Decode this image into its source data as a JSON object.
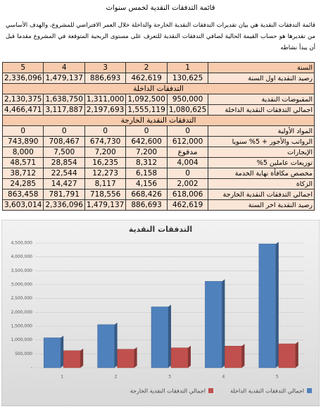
{
  "document": {
    "title": "قائمة التدفقات النقدية لخمس سنوات",
    "paragraph": "قائمة التدفقات النقدية هي بيان تقديرات التدفقات النقدية الخارجة والداخلة خلال العمر الافتراضي للمشروع، والهدف الأساسي من تقديرها هو حساب القيمة الحالية لصافي التدفقات النقدية للتعرف على مستوى الربحية المتوقعة في المشروع مقدما قبل أن يبدأ نشاطه"
  },
  "table": {
    "rows": [
      [
        "السنة",
        "1",
        "2",
        "3",
        "4",
        "5"
      ],
      [
        "رصيد النقدية اول السنة",
        "130,625",
        "462,619",
        "886,693",
        "1,479,137",
        "2,336,096"
      ],
      [
        "التدفقات الداخلة"
      ],
      [
        "المقبوضات النقدية",
        "950,000",
        "1,092,500",
        "1,311,000",
        "1,638,750",
        "2,130,375"
      ],
      [
        "اجمالي التدفقات النقدية الداخلة",
        "1,080,625",
        "1,555,119",
        "2,197,693",
        "3,117,887",
        "4,466,471"
      ],
      [
        "التدفقات النقدية الخارجة"
      ],
      [
        "المواد الأولية",
        "0",
        "0",
        "0",
        "0",
        "0"
      ],
      [
        "الرواتب والأجور + 5% سنويا",
        "612,000",
        "642,600",
        "674,730",
        "708,467",
        "743,890"
      ],
      [
        "الإيجارات",
        "مدفوع",
        "7,200",
        "7,200",
        "7,500",
        "8,000"
      ],
      [
        "توزيعات عاملين 5%",
        "4,004",
        "8,312",
        "16,235",
        "28,854",
        "48,571"
      ],
      [
        "مخصص مكافأة نهاية الخدمة",
        "0",
        "6,158",
        "12,273",
        "22,544",
        "38,712"
      ],
      [
        "الزكاة",
        "2,002",
        "4,156",
        "8,117",
        "14,427",
        "24,285"
      ],
      [
        "اجمالي التدفقات النقدية الخارجة",
        "618,006",
        "668,426",
        "718,556",
        "781,791",
        "863,458"
      ],
      [
        "رصيد النقدية اخر السنة",
        "462,619",
        "886,693",
        "1,479,137",
        "2,336,096",
        "3,603,014"
      ]
    ]
  },
  "chart_data": {
    "type": "bar",
    "title": "التدفقات النقدية",
    "categories": [
      "1",
      "2",
      "3",
      "4",
      "5"
    ],
    "series": [
      {
        "name": "اجمالي التدفقات النقدية الداخلة",
        "color": "#4f81bd",
        "values": [
          1080625,
          1555119,
          2197693,
          3117887,
          4466471
        ]
      },
      {
        "name": "اجمالي التدفقات النقدية الخارجة",
        "color": "#c0504d",
        "values": [
          618006,
          668426,
          718556,
          781791,
          863458
        ]
      }
    ],
    "ylim": [
      0,
      4500000
    ],
    "yticks": [
      {
        "value": 0,
        "label": "-"
      },
      {
        "value": 500000,
        "label": "500,000"
      },
      {
        "value": 1000000,
        "label": "1,000,000"
      },
      {
        "value": 1500000,
        "label": "1,500,000"
      },
      {
        "value": 2000000,
        "label": "2,000,000"
      },
      {
        "value": 2500000,
        "label": "2,500,000"
      },
      {
        "value": 3000000,
        "label": "3,000,000"
      },
      {
        "value": 3500000,
        "label": "3,500,000"
      },
      {
        "value": 4000000,
        "label": "4,000,000"
      },
      {
        "value": 4500000,
        "label": "4,500,000"
      }
    ],
    "grid": true
  }
}
